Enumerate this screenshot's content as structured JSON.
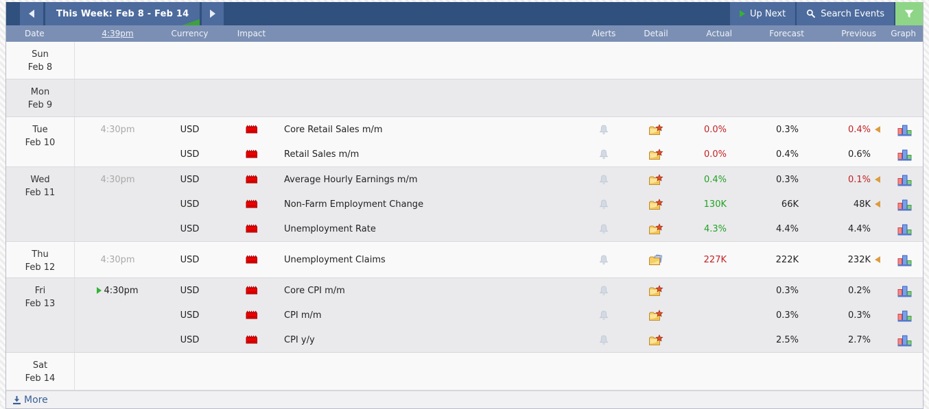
{
  "header": {
    "title": "This Week: Feb 8 - Feb 14",
    "up_next_label": "Up Next",
    "search_label": "Search Events"
  },
  "columns": {
    "date": "Date",
    "time": "4:39pm",
    "currency": "Currency",
    "impact": "Impact",
    "alerts": "Alerts",
    "detail": "Detail",
    "actual": "Actual",
    "forecast": "Forecast",
    "previous": "Previous",
    "graph": "Graph"
  },
  "footer": {
    "more_label": "More"
  },
  "colors": {
    "titlebar": "#30507e",
    "button": "#4d6b9d",
    "filter_green": "#8fd588",
    "header_row": "#7b8fb4",
    "actual_red": "#c32222",
    "actual_green": "#23a123",
    "impact_high": "#ee0000",
    "revision_marker": "#dd9c3c"
  },
  "days": [
    {
      "day": "Sun",
      "date": "Feb 8",
      "shade": "light",
      "events": []
    },
    {
      "day": "Mon",
      "date": "Feb 9",
      "shade": "dark",
      "events": []
    },
    {
      "day": "Tue",
      "date": "Feb 10",
      "shade": "light",
      "events": [
        {
          "time": "4:30pm",
          "time_state": "past",
          "currency": "USD",
          "impact": "high",
          "name": "Core Retail Sales m/m",
          "detail_icon": "folder-star",
          "actual": "0.0%",
          "actual_state": "red",
          "forecast": "0.3%",
          "previous": "0.4%",
          "previous_state": "red",
          "revised": true
        },
        {
          "time": "",
          "time_state": "",
          "currency": "USD",
          "impact": "high",
          "name": "Retail Sales m/m",
          "detail_icon": "folder-star",
          "actual": "0.0%",
          "actual_state": "red",
          "forecast": "0.4%",
          "previous": "0.6%",
          "previous_state": "",
          "revised": false
        }
      ]
    },
    {
      "day": "Wed",
      "date": "Feb 11",
      "shade": "dark",
      "events": [
        {
          "time": "4:30pm",
          "time_state": "past",
          "currency": "USD",
          "impact": "high",
          "name": "Average Hourly Earnings m/m",
          "detail_icon": "folder-star",
          "actual": "0.4%",
          "actual_state": "green",
          "forecast": "0.3%",
          "previous": "0.1%",
          "previous_state": "red",
          "revised": true
        },
        {
          "time": "",
          "time_state": "",
          "currency": "USD",
          "impact": "high",
          "name": "Non-Farm Employment Change",
          "detail_icon": "folder-star",
          "actual": "130K",
          "actual_state": "green",
          "forecast": "66K",
          "previous": "48K",
          "previous_state": "",
          "revised": true
        },
        {
          "time": "",
          "time_state": "",
          "currency": "USD",
          "impact": "high",
          "name": "Unemployment Rate",
          "detail_icon": "folder-star",
          "actual": "4.3%",
          "actual_state": "green",
          "forecast": "4.4%",
          "previous": "4.4%",
          "previous_state": "",
          "revised": false
        }
      ]
    },
    {
      "day": "Thu",
      "date": "Feb 12",
      "shade": "light",
      "events": [
        {
          "time": "4:30pm",
          "time_state": "past",
          "currency": "USD",
          "impact": "high",
          "name": "Unemployment Claims",
          "detail_icon": "folder-paper",
          "actual": "227K",
          "actual_state": "red",
          "forecast": "222K",
          "previous": "232K",
          "previous_state": "",
          "revised": true
        }
      ]
    },
    {
      "day": "Fri",
      "date": "Feb 13",
      "shade": "dark",
      "events": [
        {
          "time": "4:30pm",
          "time_state": "upnext",
          "currency": "USD",
          "impact": "high",
          "name": "Core CPI m/m",
          "detail_icon": "folder-star",
          "actual": "",
          "actual_state": "",
          "forecast": "0.3%",
          "previous": "0.2%",
          "previous_state": "",
          "revised": false
        },
        {
          "time": "",
          "time_state": "",
          "currency": "USD",
          "impact": "high",
          "name": "CPI m/m",
          "detail_icon": "folder-star",
          "actual": "",
          "actual_state": "",
          "forecast": "0.3%",
          "previous": "0.3%",
          "previous_state": "",
          "revised": false
        },
        {
          "time": "",
          "time_state": "",
          "currency": "USD",
          "impact": "high",
          "name": "CPI y/y",
          "detail_icon": "folder-star",
          "actual": "",
          "actual_state": "",
          "forecast": "2.5%",
          "previous": "2.7%",
          "previous_state": "",
          "revised": false
        }
      ]
    },
    {
      "day": "Sat",
      "date": "Feb 14",
      "shade": "light",
      "events": []
    }
  ]
}
